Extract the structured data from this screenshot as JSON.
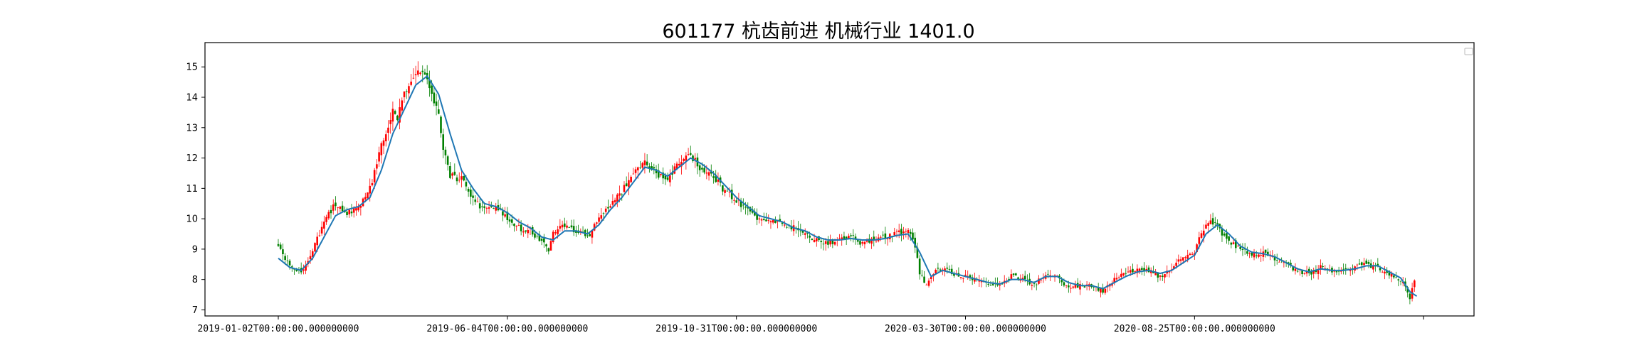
{
  "chart_data": {
    "type": "candlestick",
    "title": "601177 杭齿前进 机械行业 1401.0",
    "xlabel": "",
    "ylabel": "",
    "ylim": [
      6.8,
      15.8
    ],
    "yticks": [
      7,
      8,
      9,
      10,
      11,
      12,
      13,
      14,
      15
    ],
    "xticks": [
      {
        "index": 0,
        "label": "2019-01-02T00:00:00.000000000"
      },
      {
        "index": 100,
        "label": "2019-06-04T00:00:00.000000000"
      },
      {
        "index": 200,
        "label": "2019-10-31T00:00:00.000000000"
      },
      {
        "index": 300,
        "label": "2020-03-30T00:00:00.000000000"
      },
      {
        "index": 400,
        "label": "2020-08-25T00:00:00.000000000"
      },
      {
        "index": 500,
        "label": ""
      }
    ],
    "x_range": [
      -32,
      522
    ],
    "legend": {
      "placement": "top-right",
      "entries": []
    },
    "grid": false,
    "colors": {
      "up": "#ff0000",
      "down": "#008000",
      "ma_line": "#1f77b4",
      "axis": "#000000"
    },
    "n_candles": 497,
    "close_path": [
      [
        0,
        9.2
      ],
      [
        5,
        8.4
      ],
      [
        10,
        8.2
      ],
      [
        15,
        9.0
      ],
      [
        20,
        9.9
      ],
      [
        25,
        10.5
      ],
      [
        30,
        10.2
      ],
      [
        35,
        10.4
      ],
      [
        40,
        11.0
      ],
      [
        45,
        12.4
      ],
      [
        50,
        13.5
      ],
      [
        52,
        13.3
      ],
      [
        55,
        14.1
      ],
      [
        60,
        14.9
      ],
      [
        65,
        14.6
      ],
      [
        70,
        13.5
      ],
      [
        72,
        12.3
      ],
      [
        75,
        11.4
      ],
      [
        80,
        11.3
      ],
      [
        85,
        10.6
      ],
      [
        90,
        10.3
      ],
      [
        95,
        10.4
      ],
      [
        100,
        10.0
      ],
      [
        105,
        9.7
      ],
      [
        110,
        9.6
      ],
      [
        115,
        9.2
      ],
      [
        118,
        9.0
      ],
      [
        120,
        9.5
      ],
      [
        125,
        9.8
      ],
      [
        130,
        9.6
      ],
      [
        135,
        9.4
      ],
      [
        140,
        10.0
      ],
      [
        145,
        10.5
      ],
      [
        150,
        10.9
      ],
      [
        155,
        11.5
      ],
      [
        160,
        11.9
      ],
      [
        165,
        11.5
      ],
      [
        170,
        11.3
      ],
      [
        175,
        11.9
      ],
      [
        180,
        12.1
      ],
      [
        185,
        11.6
      ],
      [
        190,
        11.4
      ],
      [
        195,
        10.9
      ],
      [
        200,
        10.6
      ],
      [
        205,
        10.3
      ],
      [
        210,
        10.0
      ],
      [
        215,
        10.0
      ],
      [
        220,
        9.8
      ],
      [
        225,
        9.7
      ],
      [
        230,
        9.5
      ],
      [
        235,
        9.3
      ],
      [
        240,
        9.2
      ],
      [
        245,
        9.3
      ],
      [
        250,
        9.4
      ],
      [
        255,
        9.2
      ],
      [
        260,
        9.3
      ],
      [
        265,
        9.4
      ],
      [
        270,
        9.5
      ],
      [
        275,
        9.6
      ],
      [
        278,
        9.1
      ],
      [
        280,
        8.2
      ],
      [
        283,
        7.8
      ],
      [
        287,
        8.4
      ],
      [
        292,
        8.3
      ],
      [
        297,
        8.1
      ],
      [
        300,
        8.1
      ],
      [
        305,
        8.0
      ],
      [
        310,
        7.8
      ],
      [
        315,
        7.8
      ],
      [
        320,
        8.1
      ],
      [
        325,
        8.0
      ],
      [
        330,
        7.8
      ],
      [
        335,
        8.2
      ],
      [
        340,
        8.1
      ],
      [
        345,
        7.7
      ],
      [
        350,
        7.8
      ],
      [
        355,
        7.8
      ],
      [
        360,
        7.6
      ],
      [
        365,
        8.0
      ],
      [
        370,
        8.2
      ],
      [
        375,
        8.3
      ],
      [
        380,
        8.3
      ],
      [
        385,
        8.1
      ],
      [
        390,
        8.4
      ],
      [
        395,
        8.7
      ],
      [
        400,
        8.9
      ],
      [
        403,
        9.5
      ],
      [
        407,
        10.0
      ],
      [
        411,
        9.6
      ],
      [
        415,
        9.3
      ],
      [
        420,
        9.0
      ],
      [
        425,
        8.8
      ],
      [
        430,
        8.9
      ],
      [
        435,
        8.7
      ],
      [
        440,
        8.5
      ],
      [
        445,
        8.3
      ],
      [
        450,
        8.2
      ],
      [
        455,
        8.4
      ],
      [
        460,
        8.3
      ],
      [
        465,
        8.3
      ],
      [
        470,
        8.4
      ],
      [
        475,
        8.5
      ],
      [
        480,
        8.4
      ],
      [
        485,
        8.2
      ],
      [
        490,
        8.0
      ],
      [
        494,
        7.4
      ],
      [
        496,
        7.9
      ]
    ],
    "ma_path": [
      [
        0,
        8.7
      ],
      [
        5,
        8.4
      ],
      [
        10,
        8.3
      ],
      [
        15,
        8.7
      ],
      [
        20,
        9.4
      ],
      [
        25,
        10.1
      ],
      [
        30,
        10.3
      ],
      [
        35,
        10.4
      ],
      [
        40,
        10.7
      ],
      [
        45,
        11.6
      ],
      [
        50,
        12.8
      ],
      [
        55,
        13.6
      ],
      [
        60,
        14.4
      ],
      [
        65,
        14.7
      ],
      [
        70,
        14.1
      ],
      [
        75,
        12.8
      ],
      [
        80,
        11.6
      ],
      [
        85,
        11.0
      ],
      [
        90,
        10.5
      ],
      [
        95,
        10.4
      ],
      [
        100,
        10.2
      ],
      [
        105,
        9.9
      ],
      [
        110,
        9.7
      ],
      [
        115,
        9.4
      ],
      [
        120,
        9.3
      ],
      [
        125,
        9.6
      ],
      [
        130,
        9.6
      ],
      [
        135,
        9.5
      ],
      [
        140,
        9.8
      ],
      [
        145,
        10.3
      ],
      [
        150,
        10.7
      ],
      [
        155,
        11.2
      ],
      [
        160,
        11.7
      ],
      [
        165,
        11.6
      ],
      [
        170,
        11.4
      ],
      [
        175,
        11.7
      ],
      [
        180,
        12.0
      ],
      [
        185,
        11.8
      ],
      [
        190,
        11.5
      ],
      [
        195,
        11.1
      ],
      [
        200,
        10.7
      ],
      [
        205,
        10.4
      ],
      [
        210,
        10.1
      ],
      [
        215,
        10.0
      ],
      [
        220,
        9.9
      ],
      [
        225,
        9.7
      ],
      [
        230,
        9.6
      ],
      [
        235,
        9.4
      ],
      [
        240,
        9.3
      ],
      [
        245,
        9.3
      ],
      [
        250,
        9.35
      ],
      [
        255,
        9.3
      ],
      [
        260,
        9.3
      ],
      [
        265,
        9.35
      ],
      [
        270,
        9.45
      ],
      [
        275,
        9.5
      ],
      [
        280,
        8.9
      ],
      [
        285,
        8.1
      ],
      [
        290,
        8.3
      ],
      [
        295,
        8.2
      ],
      [
        300,
        8.1
      ],
      [
        305,
        8.0
      ],
      [
        310,
        7.9
      ],
      [
        315,
        7.85
      ],
      [
        320,
        8.0
      ],
      [
        325,
        8.0
      ],
      [
        330,
        7.9
      ],
      [
        335,
        8.1
      ],
      [
        340,
        8.1
      ],
      [
        345,
        7.9
      ],
      [
        350,
        7.8
      ],
      [
        355,
        7.8
      ],
      [
        360,
        7.7
      ],
      [
        365,
        7.9
      ],
      [
        370,
        8.1
      ],
      [
        375,
        8.25
      ],
      [
        380,
        8.3
      ],
      [
        385,
        8.2
      ],
      [
        390,
        8.3
      ],
      [
        395,
        8.55
      ],
      [
        400,
        8.8
      ],
      [
        405,
        9.5
      ],
      [
        410,
        9.8
      ],
      [
        415,
        9.5
      ],
      [
        420,
        9.1
      ],
      [
        425,
        8.9
      ],
      [
        430,
        8.85
      ],
      [
        435,
        8.75
      ],
      [
        440,
        8.55
      ],
      [
        445,
        8.35
      ],
      [
        450,
        8.25
      ],
      [
        455,
        8.35
      ],
      [
        460,
        8.3
      ],
      [
        465,
        8.3
      ],
      [
        470,
        8.35
      ],
      [
        475,
        8.45
      ],
      [
        480,
        8.45
      ],
      [
        485,
        8.25
      ],
      [
        490,
        8.05
      ],
      [
        494,
        7.6
      ],
      [
        497,
        7.45
      ]
    ]
  }
}
